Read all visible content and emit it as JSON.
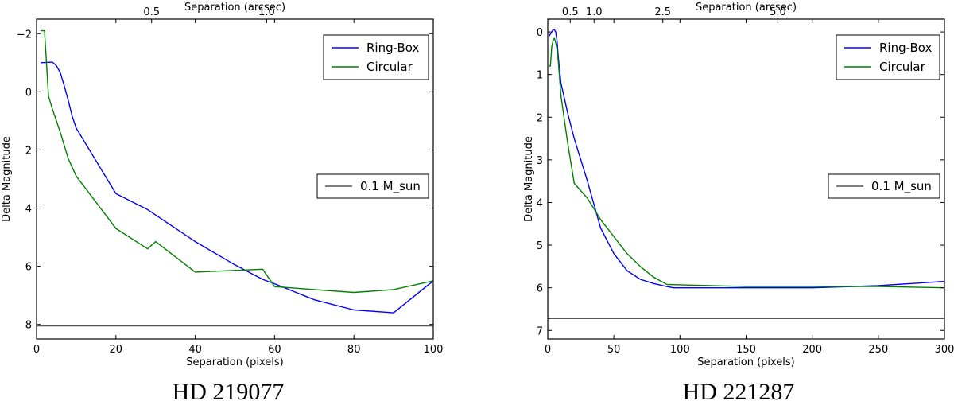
{
  "chart_data": [
    {
      "type": "line",
      "caption": "HD 219077",
      "xlabel": "Separation (pixels)",
      "ylabel": "Delta Magnitude",
      "top_xlabel": "Separation (arcsec)",
      "xlim": [
        0,
        100
      ],
      "ylim": [
        8.5,
        -2.5
      ],
      "xticks": [
        0,
        20,
        40,
        60,
        80,
        100
      ],
      "yticks": [
        -2,
        0,
        2,
        4,
        6,
        8
      ],
      "ytick_labels": [
        "−2",
        "0",
        "2",
        "4",
        "6",
        "8"
      ],
      "top_ticks": [
        {
          "x": 29,
          "label": "0.5"
        },
        {
          "x": 58,
          "label": "1.0"
        }
      ],
      "grid": false,
      "legends": [
        {
          "entries": [
            "Ring-Box",
            "Circular"
          ],
          "placement": "top-right"
        },
        {
          "entries": [
            "0.1 M_sun"
          ],
          "placement": "center-right"
        }
      ],
      "series": [
        {
          "name": "Ring-Box",
          "color": "#0000ff",
          "x": [
            1,
            4,
            5,
            6,
            7,
            8,
            9,
            10,
            20,
            28,
            40,
            50,
            57,
            60,
            70,
            80,
            90,
            100
          ],
          "y": [
            -1.0,
            -1.02,
            -0.9,
            -0.65,
            -0.2,
            0.3,
            0.85,
            1.25,
            3.5,
            4.05,
            5.15,
            5.95,
            6.45,
            6.6,
            7.15,
            7.5,
            7.6,
            6.5
          ]
        },
        {
          "name": "Circular",
          "color": "#008000",
          "x": [
            1,
            2,
            3,
            4,
            5,
            6,
            7,
            8,
            10,
            20,
            28,
            30,
            40,
            57,
            60,
            70,
            80,
            90,
            100
          ],
          "y": [
            -2.1,
            -2.1,
            0.15,
            0.6,
            1.0,
            1.4,
            1.85,
            2.3,
            2.9,
            4.7,
            5.4,
            5.15,
            6.2,
            6.1,
            6.7,
            6.8,
            6.9,
            6.8,
            6.5
          ]
        },
        {
          "name": "0.1 M_sun",
          "color": "#555555",
          "x": [
            0,
            100
          ],
          "y": [
            8.05,
            8.05
          ]
        }
      ]
    },
    {
      "type": "line",
      "caption": "HD 221287",
      "xlabel": "Separation (pixels)",
      "ylabel": "Delta Magnitude",
      "top_xlabel": "Separation (arcsec)",
      "xlim": [
        0,
        300
      ],
      "ylim": [
        7.2,
        -0.3
      ],
      "xticks": [
        0,
        50,
        100,
        150,
        200,
        250,
        300
      ],
      "yticks": [
        0,
        1,
        2,
        3,
        4,
        5,
        6,
        7
      ],
      "ytick_labels": [
        "0",
        "1",
        "2",
        "3",
        "4",
        "5",
        "6",
        "7"
      ],
      "top_ticks": [
        {
          "x": 17,
          "label": "0.5"
        },
        {
          "x": 35,
          "label": "1.0"
        },
        {
          "x": 87,
          "label": "2.5"
        },
        {
          "x": 174,
          "label": "5.0"
        }
      ],
      "grid": false,
      "legends": [
        {
          "entries": [
            "Ring-Box",
            "Circular"
          ],
          "placement": "top-right"
        },
        {
          "entries": [
            "0.1 M_sun"
          ],
          "placement": "center-right"
        }
      ],
      "series": [
        {
          "name": "Ring-Box",
          "color": "#0000ff",
          "x": [
            1,
            2,
            3,
            4,
            5,
            6,
            7,
            8,
            10,
            15,
            20,
            30,
            40,
            50,
            60,
            70,
            80,
            90,
            95,
            100,
            150,
            200,
            250,
            300
          ],
          "y": [
            0.1,
            0.05,
            0.0,
            -0.05,
            -0.05,
            0.0,
            0.2,
            0.6,
            1.2,
            1.9,
            2.5,
            3.5,
            4.6,
            5.2,
            5.6,
            5.8,
            5.9,
            5.97,
            6.0,
            6.0,
            6.0,
            6.0,
            5.95,
            5.85
          ]
        },
        {
          "name": "Circular",
          "color": "#008000",
          "x": [
            1,
            2,
            3,
            4,
            5,
            6,
            7,
            8,
            10,
            15,
            20,
            30,
            40,
            50,
            60,
            70,
            80,
            90,
            100,
            150,
            200,
            250,
            300
          ],
          "y": [
            0.8,
            0.8,
            0.35,
            0.2,
            0.15,
            0.25,
            0.4,
            0.7,
            1.5,
            2.6,
            3.55,
            3.9,
            4.4,
            4.8,
            5.2,
            5.5,
            5.75,
            5.92,
            5.93,
            5.97,
            5.97,
            5.97,
            6.0
          ]
        },
        {
          "name": "0.1 M_sun",
          "color": "#555555",
          "x": [
            0,
            300
          ],
          "y": [
            6.72,
            6.72
          ]
        }
      ]
    }
  ]
}
